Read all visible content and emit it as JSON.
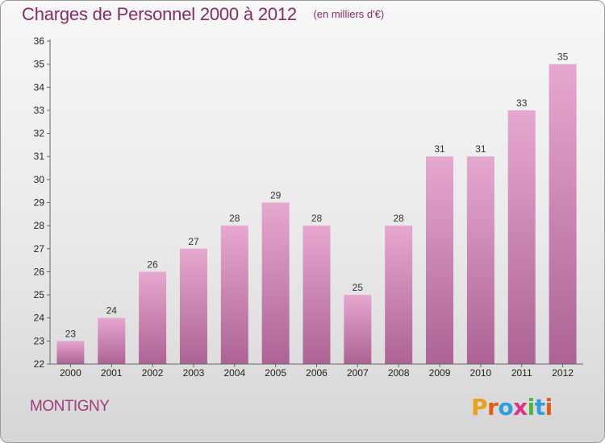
{
  "header": {
    "title": "Charges de Personnel 2000 à 2012",
    "subtitle": "(en milliers d'€)"
  },
  "footer": {
    "city": "MONTIGNY",
    "logo_text": "Proxiti",
    "logo_colors": [
      "#e8a21a",
      "#e55a1a",
      "#2f9de0",
      "#d9338a",
      "#4bb543",
      "#2f9de0",
      "#e55a1a"
    ]
  },
  "colors": {
    "title": "#8a2b63",
    "bar_top": "#e6a8cf",
    "bar_bottom": "#ad6394",
    "axis": "#666666"
  },
  "chart_data": {
    "type": "bar",
    "categories": [
      "2000",
      "2001",
      "2002",
      "2003",
      "2004",
      "2005",
      "2006",
      "2007",
      "2008",
      "2009",
      "2010",
      "2011",
      "2012"
    ],
    "values": [
      23,
      24,
      26,
      27,
      28,
      29,
      28,
      25,
      28,
      31,
      31,
      33,
      35
    ],
    "ylim": [
      22,
      36
    ],
    "yticks": [
      22,
      23,
      24,
      25,
      26,
      27,
      28,
      29,
      30,
      31,
      32,
      33,
      34,
      35,
      36
    ],
    "title": "Charges de Personnel 2000 à 2012",
    "xlabel": "",
    "ylabel": "",
    "grid": false,
    "data_labels": true
  }
}
